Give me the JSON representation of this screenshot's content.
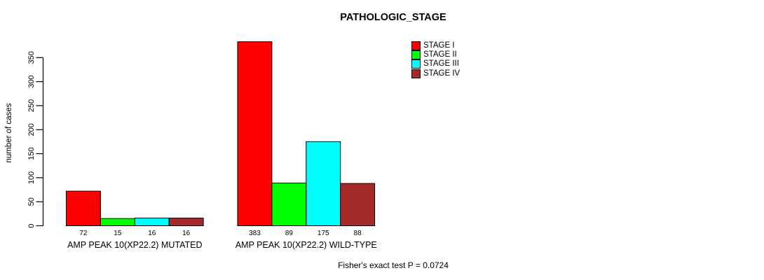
{
  "chart_data": {
    "type": "bar",
    "title": "PATHOLOGIC_STAGE",
    "xlabel": "",
    "ylabel": "number of cases",
    "ylim": [
      0,
      350
    ],
    "yticks": [
      0,
      50,
      100,
      150,
      200,
      250,
      300,
      350
    ],
    "grid": false,
    "legend_position": "top-right",
    "categories": [
      "AMP PEAK 10(XP22.2) MUTATED",
      "AMP PEAK 10(XP22.2) WILD-TYPE"
    ],
    "series": [
      {
        "name": "STAGE I",
        "color": "#ff0000",
        "values": [
          72,
          383
        ]
      },
      {
        "name": "STAGE II",
        "color": "#00ff00",
        "values": [
          15,
          89
        ]
      },
      {
        "name": "STAGE III",
        "color": "#00ffff",
        "values": [
          16,
          175
        ]
      },
      {
        "name": "STAGE IV",
        "color": "#a52a2a",
        "values": [
          16,
          88
        ]
      }
    ],
    "groups": [
      {
        "label": "AMP PEAK 10(XP22.2) MUTATED",
        "values": [
          72,
          15,
          16,
          16
        ]
      },
      {
        "label": "AMP PEAK 10(XP22.2) WILD-TYPE",
        "values": [
          383,
          89,
          175,
          88
        ]
      }
    ],
    "bar_value_labels": [
      [
        "72",
        "15",
        "16",
        "16"
      ],
      [
        "383",
        "89",
        "175",
        "88"
      ]
    ],
    "legend": [
      {
        "label": "STAGE I",
        "color": "#ff0000"
      },
      {
        "label": "STAGE II",
        "color": "#00ff00"
      },
      {
        "label": "STAGE III",
        "color": "#00ffff"
      },
      {
        "label": "STAGE IV",
        "color": "#a52a2a"
      }
    ],
    "footnote": "Fisher's exact test P = 0.0724",
    "axis_color": "#000000",
    "bar_border_color": "#000000",
    "background_color": "#ffffff"
  }
}
